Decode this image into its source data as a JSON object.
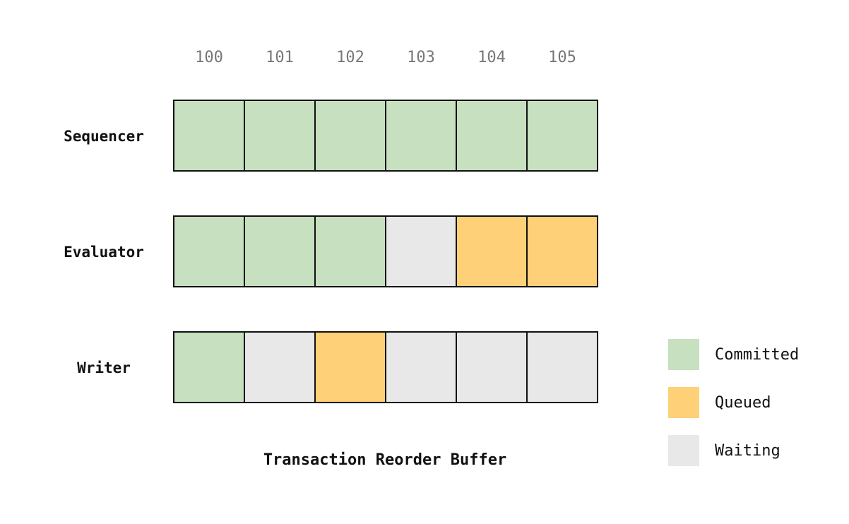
{
  "columns": [
    "100",
    "101",
    "102",
    "103",
    "104",
    "105"
  ],
  "rows": [
    {
      "label": "Sequencer",
      "cells": [
        "Committed",
        "Committed",
        "Committed",
        "Committed",
        "Committed",
        "Committed"
      ]
    },
    {
      "label": "Evaluator",
      "cells": [
        "Committed",
        "Committed",
        "Committed",
        "Waiting",
        "Queued",
        "Queued"
      ]
    },
    {
      "label": "Writer",
      "cells": [
        "Committed",
        "Waiting",
        "Queued",
        "Waiting",
        "Waiting",
        "Waiting"
      ]
    }
  ],
  "legend": [
    {
      "label": "Committed",
      "color": "#c6e0c0"
    },
    {
      "label": "Queued",
      "color": "#fed077"
    },
    {
      "label": "Waiting",
      "color": "#e8e8e8"
    }
  ],
  "caption": "Transaction Reorder Buffer"
}
